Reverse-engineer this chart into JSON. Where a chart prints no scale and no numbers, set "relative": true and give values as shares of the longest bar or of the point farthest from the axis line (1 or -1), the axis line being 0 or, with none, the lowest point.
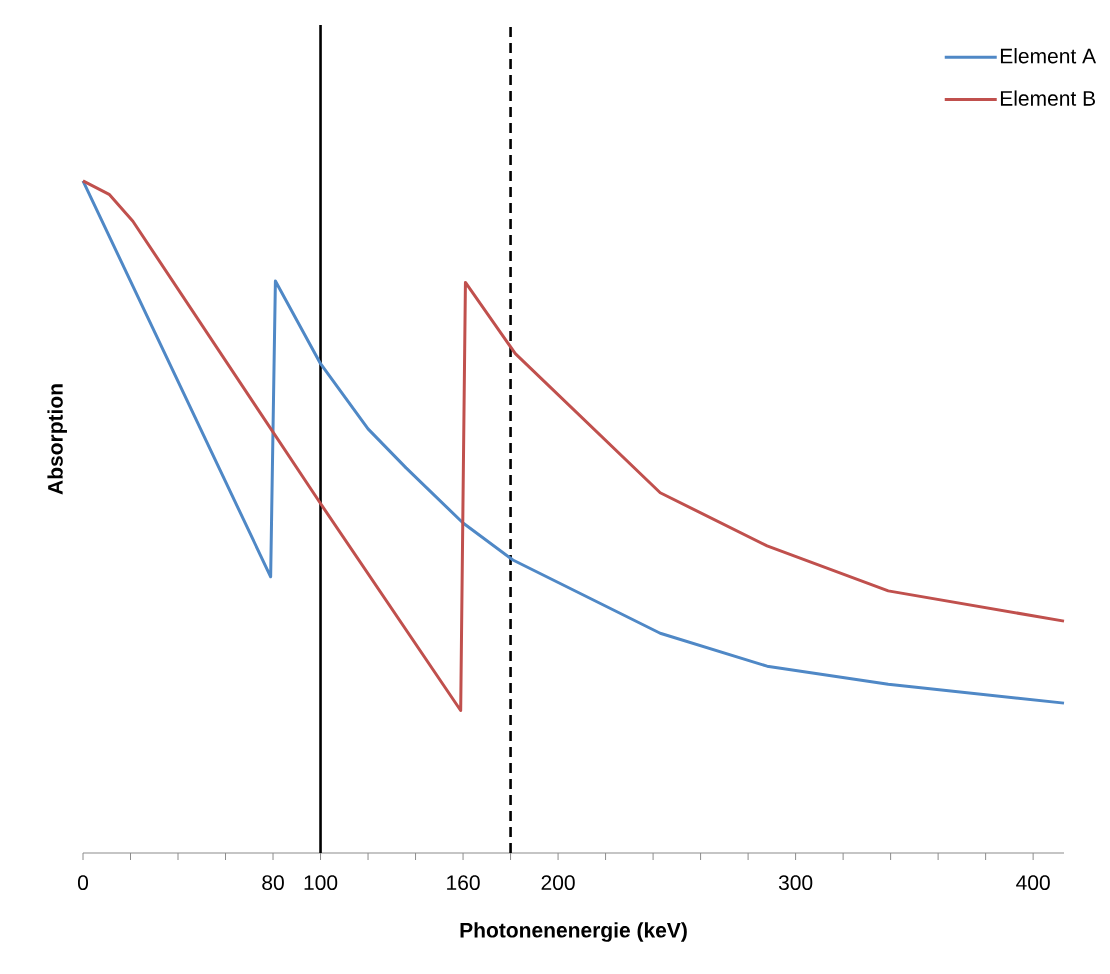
{
  "chart_data": {
    "type": "line",
    "xlabel": "Photonenenergie (keV)",
    "ylabel": "Absorption",
    "relative": true,
    "xlim": [
      0,
      413
    ],
    "xticks": [
      0,
      {
        "value": 20,
        "label": null
      },
      {
        "value": 40,
        "label": null
      },
      {
        "value": 60,
        "label": null
      },
      80,
      100,
      {
        "value": 120,
        "label": null
      },
      {
        "value": 140,
        "label": null
      },
      160,
      {
        "value": 180,
        "label": null
      },
      200,
      {
        "value": 220,
        "label": null
      },
      {
        "value": 240,
        "label": null
      },
      {
        "value": 260,
        "label": null
      },
      {
        "value": 280,
        "label": null
      },
      300,
      {
        "value": 320,
        "label": null
      },
      {
        "value": 340,
        "label": null
      },
      {
        "value": 360,
        "label": null
      },
      {
        "value": 380,
        "label": null
      },
      400
    ],
    "legend": "top right",
    "marker": "none",
    "line_style": "solid",
    "ref_lines": [
      {
        "axis": "x",
        "value": 100,
        "color": "#000000",
        "line_style": "solid"
      },
      {
        "axis": "x",
        "value": 180,
        "color": "#000000",
        "line_style": "dashed"
      }
    ],
    "series": [
      {
        "name": "Element A",
        "color": "#4f88c6",
        "x": [
          0,
          79,
          81,
          100,
          120,
          136,
          160,
          181,
          243,
          288,
          339,
          413
        ],
        "values": [
          1,
          0.411,
          0.851,
          0.728,
          0.631,
          0.573,
          0.491,
          0.436,
          0.327,
          0.278,
          0.251,
          0.223
        ]
      },
      {
        "name": "Element B",
        "color": "#c0504d",
        "x": [
          0,
          11,
          21,
          100,
          159,
          161,
          182,
          243,
          288,
          339,
          413
        ],
        "values": [
          1,
          0.98,
          0.94,
          0.52,
          0.212,
          0.849,
          0.743,
          0.536,
          0.457,
          0.39,
          0.345
        ]
      }
    ]
  }
}
